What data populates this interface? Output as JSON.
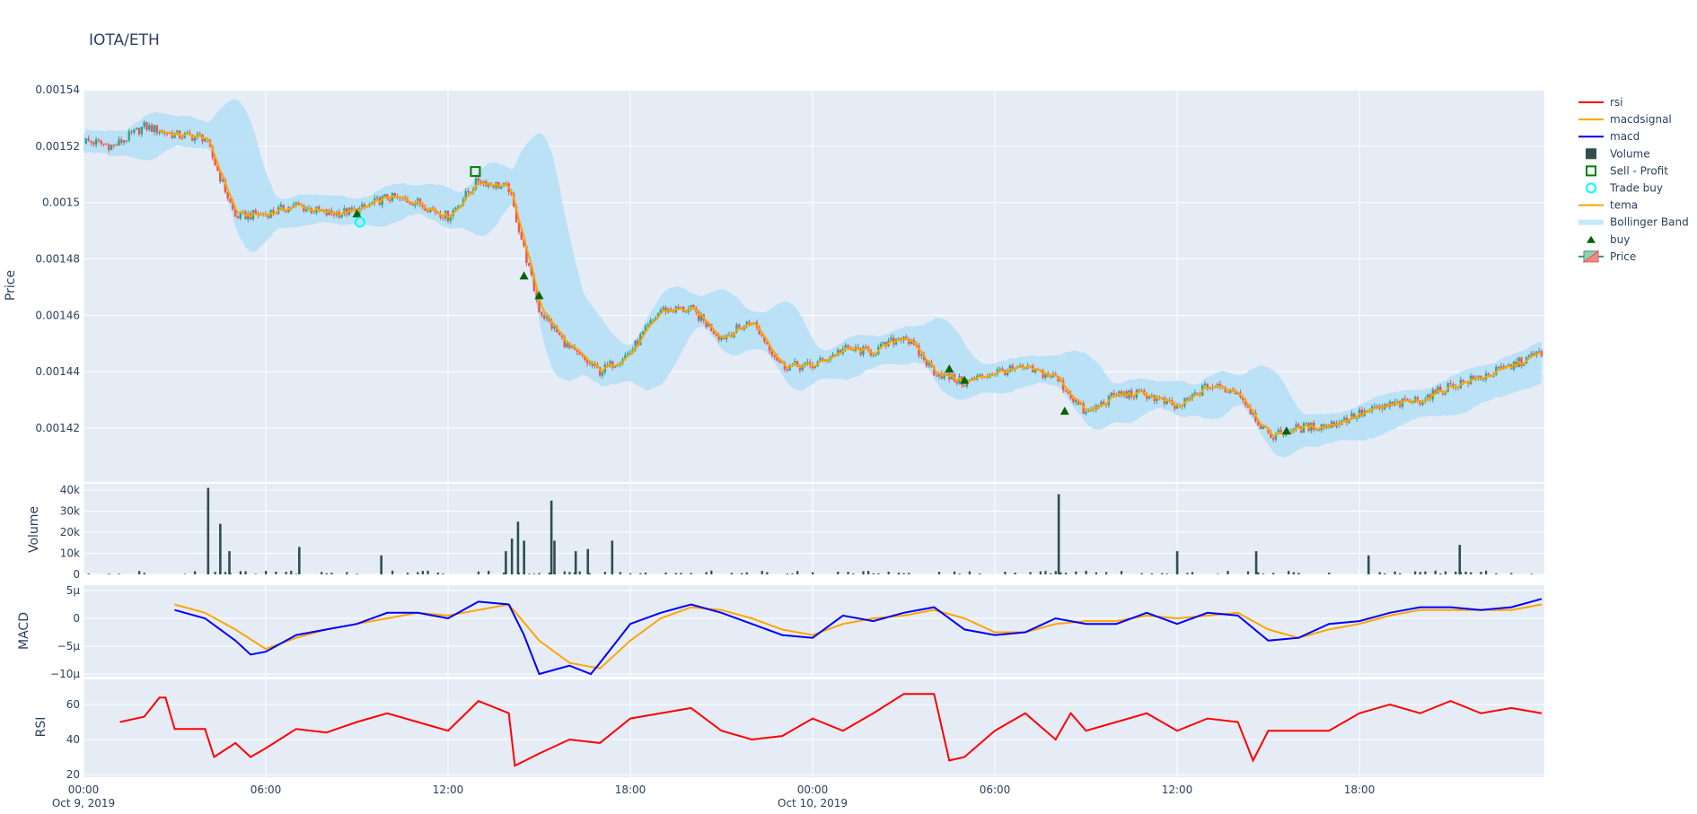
{
  "chart_data": {
    "title": "IOTA/ETH",
    "type": "candlestick",
    "x_ticks": [
      {
        "hour": 0,
        "label": "00:00",
        "sub": "Oct 9, 2019"
      },
      {
        "hour": 6,
        "label": "06:00",
        "sub": ""
      },
      {
        "hour": 12,
        "label": "12:00",
        "sub": ""
      },
      {
        "hour": 18,
        "label": "18:00",
        "sub": ""
      },
      {
        "hour": 24,
        "label": "00:00",
        "sub": "Oct 10, 2019"
      },
      {
        "hour": 30,
        "label": "06:00",
        "sub": ""
      },
      {
        "hour": 36,
        "label": "12:00",
        "sub": ""
      },
      {
        "hour": 42,
        "label": "18:00",
        "sub": ""
      }
    ],
    "x_range_hours": [
      0,
      48.1
    ],
    "grid": true,
    "legend_position": "right",
    "panels": {
      "price": {
        "ylabel": "Price",
        "ylim": [
          0.001401,
          0.001541
        ],
        "ticks": [
          "0.00142",
          "0.00144",
          "0.00146",
          "0.00148",
          "0.0015",
          "0.00152",
          "0.00154"
        ],
        "tick_values": [
          0.00142,
          0.00144,
          0.00146,
          0.00148,
          0.0015,
          0.00152,
          0.00154
        ]
      },
      "volume": {
        "ylabel": "Volume",
        "ylim": [
          0,
          43000
        ],
        "ticks": [
          "0",
          "10k",
          "20k",
          "30k",
          "40k"
        ],
        "tick_values": [
          0,
          10000,
          20000,
          30000,
          40000
        ]
      },
      "macd": {
        "ylabel": "MACD",
        "ylim": [
          -12,
          5
        ],
        "ticks": [
          "5µ",
          "0",
          "−5µ",
          "−10µ"
        ],
        "tick_values": [
          5,
          0,
          -5,
          -10
        ]
      },
      "rsi": {
        "ylabel": "RSI",
        "ylim": [
          19,
          76
        ],
        "ticks": [
          "20",
          "40",
          "60"
        ],
        "tick_values": [
          20,
          40,
          60
        ]
      }
    },
    "price_hourly_close": [
      0.001522,
      0.00152,
      0.001527,
      0.001524,
      0.001523,
      0.001495,
      0.001496,
      0.001499,
      0.001496,
      0.001497,
      0.001502,
      0.0015,
      0.001495,
      0.001508,
      0.001505,
      0.001462,
      0.001448,
      0.00144,
      0.001447,
      0.001462,
      0.001462,
      0.001452,
      0.001458,
      0.001442,
      0.001442,
      0.001448,
      0.001447,
      0.001453,
      0.00144,
      0.001436,
      0.00144,
      0.001441,
      0.001438,
      0.001425,
      0.001432,
      0.001432,
      0.001427,
      0.001435,
      0.001433,
      0.001417,
      0.00142,
      0.001421,
      0.001425,
      0.001428,
      0.00143,
      0.001435,
      0.001438,
      0.001442,
      0.001447
    ],
    "volume_spikes": [
      {
        "hour": 4.1,
        "value": 41000
      },
      {
        "hour": 4.5,
        "value": 24000
      },
      {
        "hour": 4.8,
        "value": 11000
      },
      {
        "hour": 7.1,
        "value": 13000
      },
      {
        "hour": 9.8,
        "value": 9000
      },
      {
        "hour": 13.9,
        "value": 11000
      },
      {
        "hour": 14.1,
        "value": 17000
      },
      {
        "hour": 14.3,
        "value": 25000
      },
      {
        "hour": 14.5,
        "value": 16000
      },
      {
        "hour": 15.4,
        "value": 35000
      },
      {
        "hour": 15.5,
        "value": 16000
      },
      {
        "hour": 16.2,
        "value": 11000
      },
      {
        "hour": 16.6,
        "value": 12000
      },
      {
        "hour": 17.4,
        "value": 16000
      },
      {
        "hour": 32.1,
        "value": 38000
      },
      {
        "hour": 36.0,
        "value": 11000
      },
      {
        "hour": 38.6,
        "value": 11000
      },
      {
        "hour": 42.3,
        "value": 9000
      },
      {
        "hour": 45.3,
        "value": 14000
      }
    ],
    "macd": {
      "hours": [
        3,
        4,
        5,
        5.5,
        6,
        7,
        8,
        9,
        10,
        11,
        12,
        13,
        14,
        14.5,
        15,
        16,
        16.7,
        17,
        18,
        19,
        20,
        21,
        22,
        23,
        24,
        25,
        26,
        27,
        28,
        29,
        30,
        31,
        32,
        33,
        34,
        35,
        36,
        37,
        38,
        39,
        40,
        41,
        42,
        43,
        44,
        45,
        46,
        47,
        48
      ],
      "values": [
        1.5,
        0,
        -4,
        -6.5,
        -6,
        -3,
        -2,
        -1,
        1,
        1,
        0,
        3,
        2.5,
        -3,
        -10,
        -8.5,
        -10,
        -8,
        -1,
        1,
        2.5,
        1,
        -1,
        -3,
        -3.5,
        0.5,
        -0.5,
        1,
        2,
        -2,
        -3,
        -2.5,
        0,
        -1,
        -1,
        1,
        -1,
        1,
        0.5,
        -4,
        -3.5,
        -1,
        -0.5,
        1,
        2,
        2,
        1.5,
        2,
        3.5
      ]
    },
    "macdsignal": {
      "hours": [
        3,
        4,
        5,
        6,
        7,
        8,
        9,
        10,
        11,
        12,
        13,
        14,
        15,
        16,
        17,
        18,
        19,
        20,
        21,
        22,
        23,
        24,
        25,
        26,
        27,
        28,
        29,
        30,
        31,
        32,
        33,
        34,
        35,
        36,
        37,
        38,
        39,
        40,
        41,
        42,
        43,
        44,
        45,
        46,
        47,
        48
      ],
      "values": [
        2.5,
        1,
        -2,
        -5.5,
        -3.5,
        -2,
        -1,
        0,
        1,
        0.5,
        1.5,
        2.5,
        -4,
        -8,
        -9,
        -4,
        0,
        2,
        1.5,
        0,
        -2,
        -3,
        -1,
        0,
        0.5,
        1.5,
        0,
        -2.5,
        -2.5,
        -1,
        -0.5,
        -0.5,
        0.5,
        0,
        0.5,
        1,
        -2,
        -3.5,
        -2,
        -1,
        0.5,
        1.5,
        1.5,
        1.5,
        1.5,
        2.5
      ]
    },
    "rsi": {
      "hours": [
        1.2,
        2,
        2.5,
        2.7,
        3,
        4,
        4.3,
        5,
        5.5,
        6,
        7,
        8,
        9,
        10,
        11,
        12,
        13,
        14,
        14.2,
        15,
        16,
        17,
        18,
        19,
        20,
        21,
        22,
        23,
        24,
        25,
        26,
        27,
        28,
        28.5,
        29,
        30,
        31,
        32,
        32.5,
        33,
        34,
        35,
        36,
        37,
        38,
        38.5,
        39,
        40,
        41,
        42,
        43,
        44,
        45,
        46,
        47,
        48
      ],
      "values": [
        50,
        53,
        64,
        64,
        46,
        46,
        30,
        38,
        30,
        35,
        46,
        44,
        50,
        55,
        50,
        45,
        62,
        55,
        25,
        32,
        40,
        38,
        52,
        55,
        58,
        45,
        40,
        42,
        52,
        45,
        55,
        66,
        66,
        28,
        30,
        45,
        55,
        40,
        55,
        45,
        50,
        55,
        45,
        52,
        50,
        28,
        45,
        45,
        45,
        55,
        60,
        55,
        62,
        55,
        58,
        55
      ]
    },
    "buy_markers": [
      {
        "hour": 9.0,
        "price": 0.001496
      },
      {
        "hour": 14.5,
        "price": 0.001474
      },
      {
        "hour": 15.0,
        "price": 0.001467
      },
      {
        "hour": 28.5,
        "price": 0.001441
      },
      {
        "hour": 29.0,
        "price": 0.001437
      },
      {
        "hour": 32.3,
        "price": 0.001426
      },
      {
        "hour": 39.6,
        "price": 0.001419
      }
    ],
    "trade_buy": [
      {
        "hour": 9.1,
        "price": 0.001493
      }
    ],
    "sell_profit": [
      {
        "hour": 12.9,
        "price": 0.001511
      }
    ],
    "legend": [
      {
        "name": "rsi",
        "kind": "line",
        "color": "#ff0000"
      },
      {
        "name": "macdsignal",
        "kind": "line",
        "color": "#ffa500"
      },
      {
        "name": "macd",
        "kind": "line",
        "color": "#0000ff"
      },
      {
        "name": "Volume",
        "kind": "bar",
        "color": "#2f4f4f"
      },
      {
        "name": "Sell - Profit",
        "kind": "square",
        "color": "#008000"
      },
      {
        "name": "Trade buy",
        "kind": "circle",
        "color": "#00ffff"
      },
      {
        "name": "tema",
        "kind": "line",
        "color": "#ffa500"
      },
      {
        "name": "Bollinger Band",
        "kind": "band",
        "color": "#c6e9fb"
      },
      {
        "name": "buy",
        "kind": "triangle",
        "color": "#006400"
      },
      {
        "name": "Price",
        "kind": "candle",
        "color": "#26a69a"
      }
    ],
    "colors": {
      "increasing": "#26a69a",
      "decreasing": "#ef5350",
      "band": "#b3dff5",
      "panel_bg": "#e5ecf6"
    }
  }
}
